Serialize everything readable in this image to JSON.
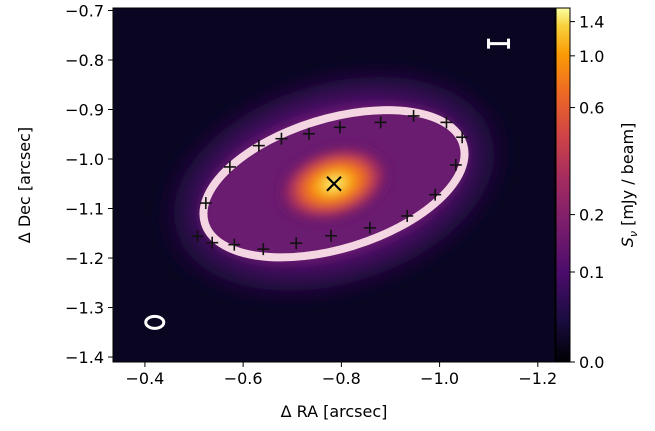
{
  "chart_data": {
    "type": "heatmap",
    "xlabel": "Δ RA [arcsec]",
    "ylabel": "Δ Dec [arcsec]",
    "colorbar_label": "S",
    "colorbar_label_sub": "ν",
    "colorbar_label_unit": " [mJy / beam]",
    "xlim": [
      -0.335,
      -1.235
    ],
    "ylim": [
      -1.41,
      -0.695
    ],
    "x_ticks": [
      -0.4,
      -0.6,
      -0.8,
      -1.0,
      -1.2
    ],
    "x_tick_labels": [
      "−0.4",
      "−0.6",
      "−0.8",
      "−1.0",
      "−1.2"
    ],
    "y_ticks": [
      -0.7,
      -0.8,
      -0.9,
      -1.0,
      -1.1,
      -1.2,
      -1.3,
      -1.4
    ],
    "y_tick_labels": [
      "−0.7",
      "−0.8",
      "−0.9",
      "−1.0",
      "−1.1",
      "−1.2",
      "−1.3",
      "−1.4"
    ],
    "colorbar_range": [
      0.0,
      1.6
    ],
    "colorbar_scale": "asinh",
    "colorbar_ticks": [
      0.0,
      0.1,
      0.2,
      0.6,
      1.0,
      1.4
    ],
    "colorbar_tick_labels": [
      "0.0",
      "0.1",
      "0.2",
      "0.6",
      "1.0",
      "1.4"
    ],
    "colormap": "inferno",
    "center_marker": {
      "x": -0.785,
      "y": -1.05,
      "symbol": "x"
    },
    "ring": {
      "center_x": -0.785,
      "center_y": -1.05,
      "semi_major": 0.275,
      "semi_minor": 0.105,
      "rotation_deg": 17
    },
    "ring_points": [
      {
        "x": -0.507,
        "y": -1.156
      },
      {
        "x": -0.524,
        "y": -1.089
      },
      {
        "x": -0.573,
        "y": -1.016
      },
      {
        "x": -0.632,
        "y": -0.973
      },
      {
        "x": -0.678,
        "y": -0.959
      },
      {
        "x": -0.734,
        "y": -0.949
      },
      {
        "x": -0.797,
        "y": -0.936
      },
      {
        "x": -0.88,
        "y": -0.926
      },
      {
        "x": -0.947,
        "y": -0.913
      },
      {
        "x": -1.014,
        "y": -0.926
      },
      {
        "x": -1.046,
        "y": -0.956
      },
      {
        "x": -1.033,
        "y": -1.012
      },
      {
        "x": -0.991,
        "y": -1.072
      },
      {
        "x": -0.934,
        "y": -1.115
      },
      {
        "x": -0.858,
        "y": -1.139
      },
      {
        "x": -0.779,
        "y": -1.155
      },
      {
        "x": -0.708,
        "y": -1.17
      },
      {
        "x": -0.641,
        "y": -1.182
      },
      {
        "x": -0.582,
        "y": -1.173
      },
      {
        "x": -0.537,
        "y": -1.169
      }
    ],
    "beam": {
      "x": -0.42,
      "y": -1.33
    },
    "scale_bar": {
      "x": -1.12,
      "y": -0.767
    },
    "grid": false
  }
}
